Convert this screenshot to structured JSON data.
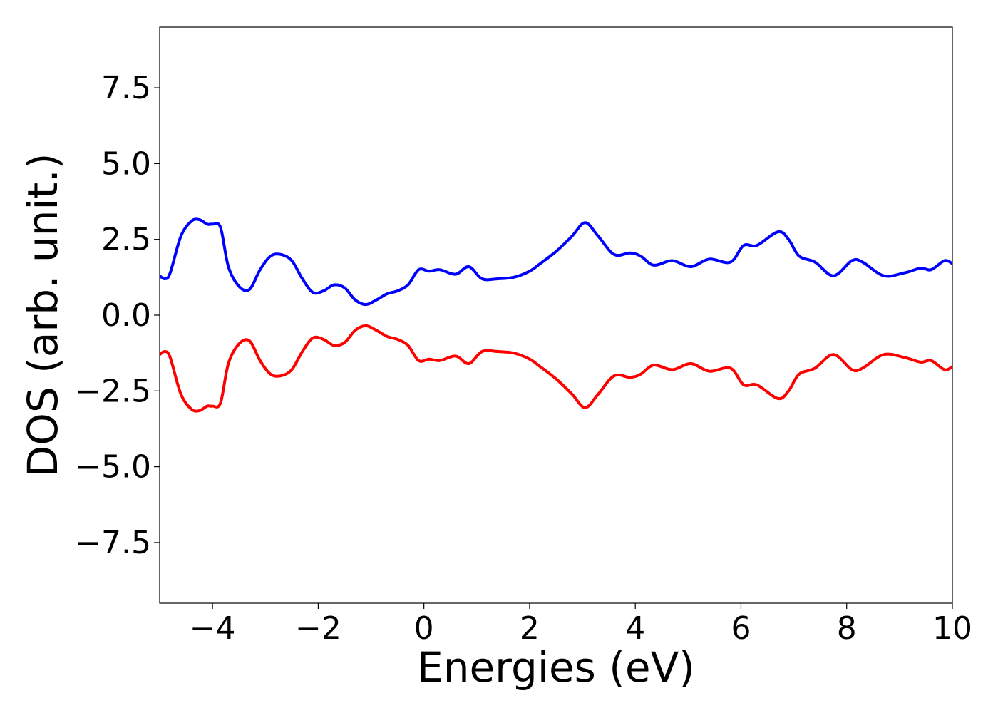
{
  "chart_data": {
    "type": "line",
    "title": "",
    "xlabel": "Energies (eV)",
    "ylabel": "DOS (arb. unit.)",
    "xlim": [
      -5,
      10
    ],
    "ylim": [
      -9.5,
      9.5
    ],
    "xticks": [
      -4,
      -2,
      0,
      2,
      4,
      6,
      8,
      10
    ],
    "yticks": [
      -7.5,
      -5.0,
      -2.5,
      0.0,
      2.5,
      5.0,
      7.5
    ],
    "xtick_labels": [
      "−4",
      "−2",
      "0",
      "2",
      "4",
      "6",
      "8",
      "10"
    ],
    "ytick_labels": [
      "−7.5",
      "−5.0",
      "−2.5",
      "0.0",
      "2.5",
      "5.0",
      "7.5"
    ],
    "grid": false,
    "legend": "none",
    "series": [
      {
        "color": "#0000ff",
        "x": [
          -5.0,
          -4.9,
          -4.8,
          -4.6,
          -4.4,
          -4.25,
          -4.1,
          -4.0,
          -3.85,
          -3.7,
          -3.5,
          -3.3,
          -3.1,
          -2.9,
          -2.7,
          -2.5,
          -2.3,
          -2.1,
          -1.9,
          -1.7,
          -1.5,
          -1.3,
          -1.1,
          -0.9,
          -0.7,
          -0.5,
          -0.3,
          -0.1,
          0.1,
          0.3,
          0.6,
          0.85,
          1.1,
          1.4,
          1.7,
          2.0,
          2.2,
          2.5,
          2.8,
          3.05,
          3.3,
          3.6,
          3.9,
          4.1,
          4.35,
          4.7,
          5.05,
          5.4,
          5.8,
          6.05,
          6.3,
          6.7,
          6.9,
          7.1,
          7.4,
          7.75,
          8.1,
          8.3,
          8.7,
          9.1,
          9.4,
          9.6,
          9.85,
          10.0
        ],
        "y": [
          1.3,
          1.2,
          1.4,
          2.6,
          3.1,
          3.15,
          3.0,
          3.0,
          2.9,
          1.6,
          0.95,
          0.85,
          1.5,
          1.95,
          2.0,
          1.8,
          1.2,
          0.75,
          0.8,
          1.0,
          0.9,
          0.5,
          0.35,
          0.5,
          0.7,
          0.8,
          1.0,
          1.5,
          1.45,
          1.5,
          1.35,
          1.6,
          1.2,
          1.2,
          1.25,
          1.45,
          1.7,
          2.1,
          2.6,
          3.05,
          2.6,
          2.0,
          2.05,
          1.95,
          1.65,
          1.8,
          1.6,
          1.85,
          1.75,
          2.3,
          2.3,
          2.75,
          2.5,
          1.95,
          1.75,
          1.3,
          1.8,
          1.75,
          1.3,
          1.4,
          1.55,
          1.5,
          1.8,
          1.7
        ]
      },
      {
        "color": "#ff0000",
        "x": [
          -5.0,
          -4.9,
          -4.8,
          -4.6,
          -4.4,
          -4.25,
          -4.1,
          -4.0,
          -3.85,
          -3.7,
          -3.5,
          -3.3,
          -3.1,
          -2.9,
          -2.7,
          -2.5,
          -2.3,
          -2.1,
          -1.9,
          -1.7,
          -1.5,
          -1.3,
          -1.1,
          -0.9,
          -0.7,
          -0.5,
          -0.3,
          -0.1,
          0.1,
          0.3,
          0.6,
          0.85,
          1.1,
          1.4,
          1.7,
          2.0,
          2.2,
          2.5,
          2.8,
          3.05,
          3.3,
          3.6,
          3.9,
          4.1,
          4.35,
          4.7,
          5.05,
          5.4,
          5.8,
          6.05,
          6.3,
          6.7,
          6.9,
          7.1,
          7.4,
          7.75,
          8.1,
          8.3,
          8.7,
          9.1,
          9.4,
          9.6,
          9.85,
          10.0
        ],
        "y": [
          -1.3,
          -1.2,
          -1.4,
          -2.6,
          -3.1,
          -3.15,
          -3.0,
          -3.0,
          -2.9,
          -1.6,
          -0.95,
          -0.85,
          -1.5,
          -1.95,
          -2.0,
          -1.8,
          -1.2,
          -0.75,
          -0.8,
          -1.0,
          -0.9,
          -0.5,
          -0.35,
          -0.5,
          -0.7,
          -0.8,
          -1.0,
          -1.5,
          -1.45,
          -1.5,
          -1.35,
          -1.6,
          -1.2,
          -1.2,
          -1.25,
          -1.45,
          -1.7,
          -2.1,
          -2.6,
          -3.05,
          -2.6,
          -2.0,
          -2.05,
          -1.95,
          -1.65,
          -1.8,
          -1.6,
          -1.85,
          -1.75,
          -2.3,
          -2.3,
          -2.75,
          -2.5,
          -1.95,
          -1.75,
          -1.3,
          -1.8,
          -1.75,
          -1.3,
          -1.4,
          -1.55,
          -1.5,
          -1.8,
          -1.7
        ]
      }
    ]
  }
}
